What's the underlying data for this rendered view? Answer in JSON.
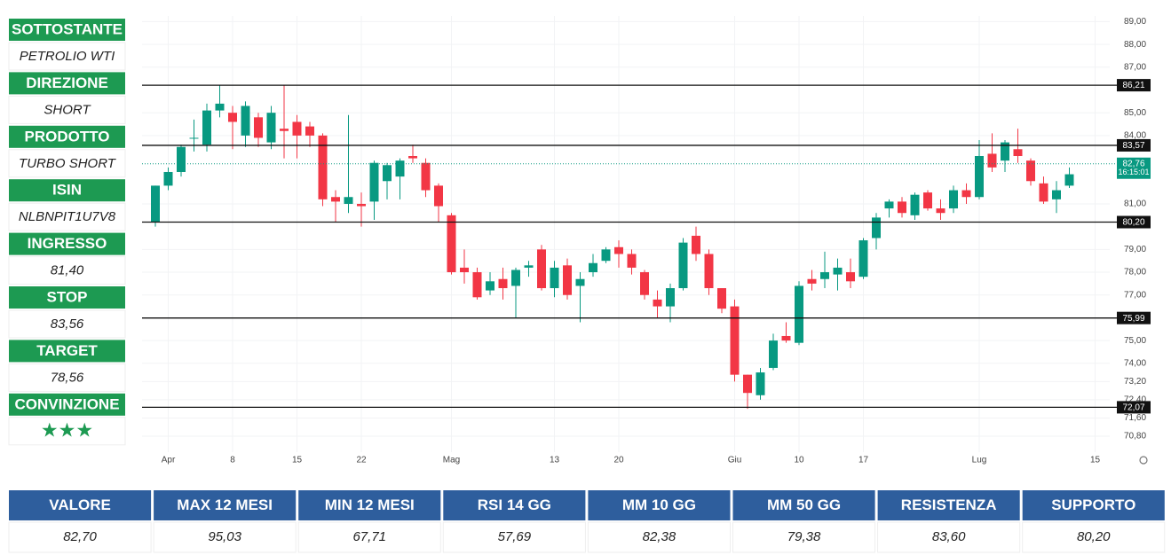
{
  "side_panel": [
    {
      "label": "SOTTOSTANTE",
      "value": "PETROLIO WTI"
    },
    {
      "label": "DIREZIONE",
      "value": "SHORT"
    },
    {
      "label": "PRODOTTO",
      "value": "TURBO SHORT"
    },
    {
      "label": "ISIN",
      "value": "NLBNPIT1U7V8"
    },
    {
      "label": "INGRESSO",
      "value": "81,40"
    },
    {
      "label": "STOP",
      "value": "83,56"
    },
    {
      "label": "TARGET",
      "value": "78,56"
    },
    {
      "label": "CONVINZIONE",
      "value": "★★★"
    }
  ],
  "chart_data": {
    "type": "candlestick",
    "categories": [
      null,
      "Apr",
      null,
      null,
      null,
      null,
      "8",
      null,
      null,
      null,
      null,
      "15",
      null,
      null,
      null,
      null,
      "22",
      null,
      null,
      null,
      null,
      null,
      null,
      "Mag",
      null,
      null,
      null,
      null,
      null,
      null,
      null,
      "13",
      null,
      null,
      null,
      null,
      "20",
      null,
      null,
      null,
      null,
      null,
      null,
      null,
      null,
      "Giu",
      null,
      null,
      null,
      null,
      "10",
      null,
      null,
      null,
      null,
      "17",
      null,
      null,
      null,
      null,
      null,
      null,
      null,
      null,
      "Lug",
      null,
      null,
      null,
      null,
      null,
      null,
      null,
      null,
      "15"
    ],
    "open": [
      80.2,
      81.8,
      82.4,
      83.9,
      83.6,
      85.1,
      85.0,
      84.0,
      84.8,
      83.7,
      84.3,
      84.6,
      84.4,
      84.0,
      81.3,
      81.0,
      81.0,
      81.1,
      82.0,
      82.2,
      83.1,
      82.8,
      81.8,
      80.5,
      78.2,
      78.0,
      77.2,
      77.7,
      77.4,
      78.2,
      79.0,
      77.3,
      78.3,
      77.4,
      78.0,
      78.5,
      79.1,
      78.8,
      78.0,
      76.8,
      76.5,
      77.3,
      79.6,
      78.8,
      77.3,
      76.5,
      73.5,
      72.6,
      73.8,
      75.2,
      74.9,
      77.7,
      77.7,
      77.9,
      78.0,
      77.8,
      79.5,
      80.8,
      81.1,
      80.5,
      81.5,
      80.8,
      80.8,
      81.6,
      81.3,
      83.2,
      82.9,
      83.4,
      82.9,
      81.9,
      81.2,
      81.8,
      null,
      null
    ],
    "high": [
      81.8,
      82.6,
      83.6,
      84.7,
      85.4,
      86.2,
      85.3,
      85.5,
      85.0,
      85.3,
      86.2,
      84.9,
      84.6,
      84.1,
      81.6,
      84.9,
      81.5,
      82.9,
      82.8,
      83.0,
      83.6,
      83.0,
      81.9,
      80.6,
      79.0,
      78.2,
      78.0,
      78.2,
      78.2,
      78.5,
      79.2,
      78.5,
      78.6,
      78.0,
      78.8,
      79.1,
      79.4,
      79.0,
      78.1,
      77.2,
      77.5,
      79.5,
      80.0,
      79.0,
      77.3,
      76.8,
      73.5,
      73.8,
      75.3,
      75.8,
      77.6,
      78.1,
      78.9,
      78.6,
      78.6,
      79.5,
      80.6,
      81.2,
      81.3,
      81.5,
      81.6,
      81.2,
      81.8,
      81.9,
      83.8,
      84.1,
      83.8,
      84.3,
      83.0,
      82.2,
      82.0,
      82.6,
      null,
      null
    ],
    "low": [
      80.0,
      81.6,
      82.2,
      83.3,
      83.3,
      84.8,
      83.4,
      83.5,
      83.5,
      83.4,
      83.0,
      83.0,
      83.5,
      80.9,
      80.2,
      80.6,
      80.0,
      80.3,
      81.2,
      81.2,
      82.8,
      81.3,
      80.2,
      77.9,
      77.5,
      76.8,
      77.0,
      76.8,
      76.0,
      77.8,
      77.2,
      76.9,
      76.8,
      75.8,
      77.8,
      78.4,
      78.2,
      77.9,
      76.8,
      76.0,
      75.8,
      77.2,
      78.5,
      77.0,
      76.2,
      73.2,
      72.0,
      72.4,
      73.7,
      74.9,
      74.8,
      77.2,
      77.3,
      77.2,
      77.3,
      77.7,
      79.0,
      80.4,
      80.4,
      80.3,
      80.7,
      80.3,
      80.6,
      81.0,
      81.2,
      82.4,
      82.4,
      82.8,
      81.8,
      81.0,
      80.6,
      81.7,
      null,
      null
    ],
    "close": [
      81.8,
      82.4,
      83.5,
      83.9,
      85.1,
      85.4,
      84.6,
      85.3,
      83.9,
      85.0,
      84.2,
      84.0,
      84.0,
      81.2,
      81.1,
      81.3,
      80.9,
      82.8,
      82.7,
      82.9,
      83.0,
      81.6,
      80.9,
      78.0,
      78.0,
      76.9,
      77.6,
      77.3,
      78.1,
      78.3,
      77.3,
      78.2,
      77.0,
      77.7,
      78.4,
      79.0,
      78.8,
      78.2,
      77.0,
      76.5,
      77.3,
      79.3,
      78.8,
      77.3,
      76.4,
      73.5,
      72.7,
      73.6,
      75.0,
      75.0,
      77.4,
      77.5,
      78.0,
      78.2,
      77.6,
      79.4,
      80.4,
      81.1,
      80.6,
      81.4,
      80.8,
      80.6,
      81.6,
      81.3,
      83.1,
      82.6,
      83.7,
      83.1,
      82.0,
      81.1,
      81.6,
      82.3,
      null,
      null
    ],
    "up_color": "#089981",
    "down_color": "#f23645",
    "ylim": [
      70.1,
      89.25
    ],
    "yticks": [
      {
        "value": 89,
        "label": "89,00"
      },
      {
        "value": 88,
        "label": "88,00"
      },
      {
        "value": 87,
        "label": "87,00"
      },
      {
        "value": 85,
        "label": "85,00"
      },
      {
        "value": 84,
        "label": "84,00"
      },
      {
        "value": 81,
        "label": "81,00"
      },
      {
        "value": 79,
        "label": "79,00"
      },
      {
        "value": 78,
        "label": "78,00"
      },
      {
        "value": 77,
        "label": "77,00"
      },
      {
        "value": 75,
        "label": "75,00"
      },
      {
        "value": 74,
        "label": "74,00"
      },
      {
        "value": 73.2,
        "label": "73,20"
      },
      {
        "value": 72.4,
        "label": "72,40"
      },
      {
        "value": 71.6,
        "label": "71,60"
      },
      {
        "value": 70.8,
        "label": "70,80"
      }
    ],
    "levels": [
      {
        "value": 86.21,
        "label": "86,21"
      },
      {
        "value": 83.57,
        "label": "83,57"
      },
      {
        "value": 80.2,
        "label": "80,20"
      },
      {
        "value": 75.99,
        "label": "75,99"
      },
      {
        "value": 72.07,
        "label": "72,07"
      }
    ],
    "last_price": {
      "value": 82.76,
      "label": "82,76",
      "time": "16:15:01"
    }
  },
  "table": {
    "headers": [
      "VALORE",
      "MAX 12 MESI",
      "MIN 12 MESI",
      "RSI 14 GG",
      "MM 10 GG",
      "MM 50 GG",
      "RESISTENZA",
      "SUPPORTO"
    ],
    "values": [
      "82,70",
      "95,03",
      "67,71",
      "57,69",
      "82,38",
      "79,38",
      "83,60",
      "80,20"
    ]
  }
}
